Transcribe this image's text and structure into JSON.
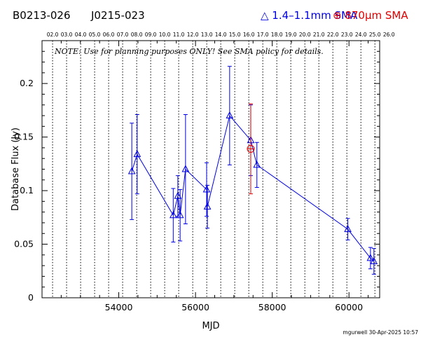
{
  "header": {
    "source1": "B0213-026",
    "source2": "J0215-023",
    "legend_blue": "△ 1.4–1.1mm SMA",
    "legend_red": "⊕ 870μm SMA"
  },
  "note": "NOTE: Use for planning purposes ONLY!  See SMA policy for details.",
  "footer": "mgurwell 30-Apr-2025 10:57",
  "colors": {
    "blue": "#0000e0",
    "red": "#e00000",
    "text": "#000000"
  },
  "chart_data": {
    "type": "scatter",
    "xlabel": "MJD",
    "ylabel": "Database Flux (Jy)",
    "xlim": [
      52000,
      60800
    ],
    "ylim": [
      0,
      0.24
    ],
    "x_ticks": [
      54000,
      56000,
      58000,
      60000
    ],
    "x_tick_labels": [
      "54000",
      "56000",
      "58000",
      "60000"
    ],
    "y_ticks": [
      0,
      0.05,
      0.1,
      0.15,
      0.2
    ],
    "y_tick_labels": [
      "0",
      "0.05",
      "0.1",
      "0.15",
      "0.2"
    ],
    "ut_labels": [
      "02.0",
      "03.0",
      "04.0",
      "05.0",
      "06.0",
      "07.0",
      "08.0",
      "09.0",
      "10.0",
      "11.0",
      "12.0",
      "13.0",
      "14.0",
      "15.0",
      "16.0",
      "17.0",
      "18.0",
      "19.0",
      "20.0",
      "21.0",
      "22.0",
      "23.0",
      "24.0",
      "25.0",
      "26.0"
    ],
    "ut_mjd": [
      52275,
      52640,
      53006,
      53371,
      53736,
      54101,
      54467,
      54832,
      55197,
      55562,
      55928,
      56293,
      56658,
      57023,
      57389,
      57754,
      58119,
      58484,
      58850,
      59215,
      59580,
      59945,
      60311,
      60676,
      61041
    ],
    "series": [
      {
        "name": "1.4–1.1mm SMA",
        "color": "#0000e0",
        "marker": "triangle",
        "connected": true,
        "points": [
          {
            "x": 54340,
            "y": 0.118,
            "err": 0.045
          },
          {
            "x": 54480,
            "y": 0.134,
            "err": 0.037
          },
          {
            "x": 55420,
            "y": 0.077,
            "err": 0.025
          },
          {
            "x": 55540,
            "y": 0.095,
            "err": 0.019
          },
          {
            "x": 55600,
            "y": 0.077,
            "err": 0.024
          },
          {
            "x": 55740,
            "y": 0.12,
            "err": 0.051
          },
          {
            "x": 56290,
            "y": 0.101,
            "err": 0.025
          },
          {
            "x": 56310,
            "y": 0.085,
            "err": 0.02
          },
          {
            "x": 56890,
            "y": 0.17,
            "err": 0.046
          },
          {
            "x": 57440,
            "y": 0.147,
            "err": 0.033
          },
          {
            "x": 57600,
            "y": 0.124,
            "err": 0.021
          },
          {
            "x": 59970,
            "y": 0.064,
            "err": 0.01
          },
          {
            "x": 60560,
            "y": 0.037,
            "err": 0.01
          },
          {
            "x": 60650,
            "y": 0.034,
            "err": 0.012
          }
        ]
      },
      {
        "name": "870μm SMA",
        "color": "#e00000",
        "marker": "circle-plus",
        "connected": false,
        "points": [
          {
            "x": 57440,
            "y": 0.139,
            "err": 0.042
          }
        ]
      }
    ]
  }
}
